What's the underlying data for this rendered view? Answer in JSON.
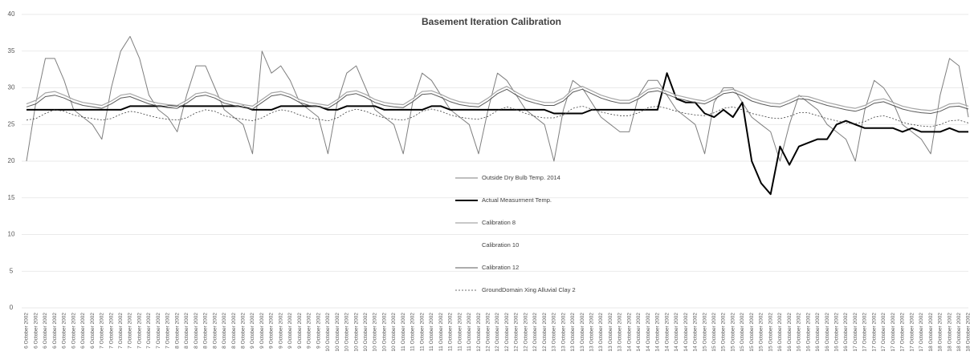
{
  "chart_data": {
    "type": "line",
    "title": "Basement Iteration Calibration",
    "categories": [
      "6 October 2002",
      "6 October 2002",
      "6 October 2002",
      "6 October 2002",
      "6 October 2002",
      "6 October 2002",
      "6 October 2002",
      "6 October 2002",
      "7 October 2002",
      "7 October 2002",
      "7 October 2002",
      "7 October 2002",
      "7 October 2002",
      "7 October 2002",
      "7 October 2002",
      "7 October 2002",
      "8 October 2002",
      "8 October 2002",
      "8 October 2002",
      "8 October 2002",
      "8 October 2002",
      "8 October 2002",
      "8 October 2002",
      "8 October 2002",
      "9 October 2002",
      "9 October 2002",
      "9 October 2002",
      "9 October 2002",
      "9 October 2002",
      "9 October 2002",
      "9 October 2002",
      "9 October 2002",
      "10 October 2002",
      "10 October 2002",
      "10 October 2002",
      "10 October 2002",
      "10 October 2002",
      "10 October 2002",
      "10 October 2002",
      "10 October 2002",
      "11 October 2002",
      "11 October 2002",
      "11 October 2002",
      "11 October 2002",
      "11 October 2002",
      "11 October 2002",
      "11 October 2002",
      "11 October 2002",
      "12 October 2002",
      "12 October 2002",
      "12 October 2002",
      "12 October 2002",
      "12 October 2002",
      "12 October 2002",
      "12 October 2002",
      "12 October 2002",
      "13 October 2002",
      "13 October 2002",
      "13 October 2002",
      "13 October 2002",
      "13 October 2002",
      "13 October 2002",
      "13 October 2002",
      "13 October 2002",
      "14 October 2002",
      "14 October 2002",
      "14 October 2002",
      "14 October 2002",
      "14 October 2002",
      "14 October 2002",
      "14 October 2002",
      "14 October 2002",
      "15 October 2002",
      "15 October 2002",
      "15 October 2002",
      "15 October 2002",
      "15 October 2002",
      "15 October 2002",
      "15 October 2002",
      "15 October 2002",
      "16 October 2002",
      "16 October 2002",
      "16 October 2002",
      "16 October 2002",
      "16 October 2002",
      "16 October 2002",
      "16 October 2002",
      "16 October 2002",
      "17 October 2002",
      "17 October 2002",
      "17 October 2002",
      "17 October 2002",
      "17 October 2002",
      "17 October 2002",
      "17 October 2002",
      "17 October 2002",
      "18 October 2002",
      "18 October 2002",
      "18 October 2002",
      "18 October 2002",
      "18 October 2002"
    ],
    "series": [
      {
        "name": "Outside Dry Bulb Temp. 2014",
        "color": "#7f7f7f",
        "width": 1,
        "values": [
          20,
          28,
          34,
          34,
          31,
          27,
          26,
          25,
          23,
          30,
          35,
          37,
          34,
          29,
          27,
          26,
          24,
          29,
          33,
          33,
          30,
          27,
          26,
          25,
          21,
          35,
          32,
          33,
          31,
          28,
          27,
          26,
          21,
          28,
          32,
          33,
          30,
          27,
          26,
          25,
          21,
          28,
          32,
          31,
          29,
          27,
          26,
          25,
          21,
          27,
          32,
          31,
          29,
          27,
          26,
          25,
          20,
          27,
          31,
          30,
          28,
          26,
          25,
          24,
          24,
          29,
          31,
          31,
          29,
          27,
          26,
          25,
          21,
          28,
          30,
          30,
          28,
          26,
          25,
          24,
          20,
          25,
          29,
          28,
          27,
          25,
          24,
          23,
          20,
          27,
          31,
          30,
          28,
          25,
          24,
          23,
          21,
          29,
          34,
          33,
          26
        ]
      },
      {
        "name": "Actual Measurment Temp.",
        "color": "#000000",
        "width": 2,
        "values": [
          27,
          27,
          27,
          27,
          27,
          27,
          27,
          27,
          27,
          27,
          27,
          27.5,
          27.5,
          27.5,
          27.5,
          27.5,
          27.5,
          27.5,
          27.5,
          27.5,
          27.5,
          27.5,
          27.5,
          27.5,
          27,
          27,
          27,
          27.5,
          27.5,
          27.5,
          27.5,
          27.5,
          27,
          27,
          27.5,
          27.5,
          27.5,
          27.5,
          27,
          27,
          27,
          27,
          27,
          27.5,
          27.5,
          27,
          27,
          27,
          27,
          27,
          27,
          27,
          27,
          27,
          27,
          27,
          26.5,
          26.5,
          26.5,
          26.5,
          27,
          27,
          27,
          27,
          27,
          27,
          27,
          27,
          32,
          28.5,
          28,
          28,
          26.5,
          26,
          27,
          26,
          28,
          20,
          17,
          15.5,
          22,
          19.5,
          22,
          22.5,
          23,
          23,
          25,
          25.5,
          25,
          24.5,
          24.5,
          24.5,
          24.5,
          24,
          24.5,
          24,
          24,
          24,
          24.5,
          24,
          24
        ]
      },
      {
        "name": "Calibration 8",
        "color": "#a6a6a6",
        "width": 1.2,
        "values": [
          27.8,
          28.3,
          29.3,
          29.5,
          29,
          28.4,
          28,
          27.8,
          27.6,
          28.2,
          29,
          29.2,
          28.7,
          28.2,
          27.9,
          27.7,
          27.6,
          28.3,
          29.2,
          29.4,
          29,
          28.3,
          28,
          27.7,
          27.5,
          28.4,
          29.3,
          29.5,
          29.1,
          28.4,
          28,
          27.8,
          27.6,
          28.4,
          29.4,
          29.6,
          29.1,
          28.4,
          28,
          27.8,
          27.7,
          28.5,
          29.5,
          29.6,
          29.1,
          28.5,
          28.1,
          27.9,
          27.8,
          28.6,
          29.6,
          30.2,
          29.4,
          28.7,
          28.3,
          28,
          28,
          28.6,
          29.8,
          30.2,
          29.6,
          29,
          28.6,
          28.3,
          28.3,
          28.9,
          29.8,
          30,
          29.5,
          29,
          28.7,
          28.4,
          28.2,
          28.8,
          29.6,
          29.8,
          29.3,
          28.6,
          28.2,
          27.9,
          27.8,
          28.3,
          28.9,
          28.8,
          28.4,
          28,
          27.7,
          27.4,
          27.2,
          27.6,
          28.3,
          28.5,
          28,
          27.5,
          27.2,
          27,
          26.9,
          27.2,
          27.8,
          27.9,
          27.5
        ]
      },
      {
        "name": "Calibration 10",
        "color": "#ffffff",
        "width": 1,
        "values": [
          27.6,
          28,
          29,
          29.2,
          28.8,
          28.2,
          27.8,
          27.6,
          27.4,
          28,
          28.8,
          29,
          28.5,
          28,
          27.7,
          27.5,
          27.4,
          28.1,
          29,
          29.2,
          28.8,
          28.1,
          27.8,
          27.5,
          27.3,
          28.2,
          29.1,
          29.3,
          28.9,
          28.2,
          27.8,
          27.6,
          27.4,
          28.2,
          29.2,
          29.4,
          28.9,
          28.2,
          27.8,
          27.6,
          27.5,
          28.3,
          29.3,
          29.4,
          28.9,
          28.3,
          27.9,
          27.7,
          27.6,
          28.4,
          29.4,
          30,
          29.2,
          28.5,
          28.1,
          27.8,
          27.8,
          28.4,
          29.6,
          30,
          29.4,
          28.8,
          28.4,
          28.1,
          28.1,
          28.7,
          29.6,
          29.8,
          29.3,
          28.8,
          28.5,
          28.2,
          28,
          28.6,
          29.4,
          29.6,
          29.1,
          28.4,
          28,
          27.7,
          27.6,
          28.1,
          28.7,
          28.6,
          28.2,
          27.8,
          27.5,
          27.2,
          27,
          27.4,
          28.1,
          28.3,
          27.8,
          27.3,
          27,
          26.8,
          26.7,
          27,
          27.6,
          27.7,
          27.3
        ]
      },
      {
        "name": "Calibration 12",
        "color": "#595959",
        "width": 1,
        "values": [
          27.4,
          27.8,
          28.8,
          29,
          28.6,
          28,
          27.6,
          27.4,
          27.2,
          27.8,
          28.6,
          28.8,
          28.3,
          27.8,
          27.5,
          27.3,
          27.2,
          27.9,
          28.8,
          29,
          28.6,
          27.9,
          27.6,
          27.3,
          27.1,
          28,
          28.9,
          29.1,
          28.7,
          28,
          27.6,
          27.4,
          27.2,
          28,
          29,
          29.2,
          28.7,
          28,
          27.6,
          27.4,
          27.3,
          28.1,
          29.1,
          29.2,
          28.7,
          28.1,
          27.7,
          27.5,
          27.4,
          28.2,
          29.2,
          29.8,
          29,
          28.3,
          27.9,
          27.6,
          27.6,
          28.2,
          29.4,
          29.8,
          29.2,
          28.6,
          28.2,
          27.9,
          27.9,
          28.5,
          29.4,
          29.6,
          29.1,
          28.6,
          28.3,
          28,
          27.8,
          28.4,
          29.2,
          29.4,
          28.9,
          28.2,
          27.8,
          27.5,
          27.4,
          27.9,
          28.5,
          28.4,
          28,
          27.6,
          27.3,
          27,
          26.8,
          27.2,
          27.9,
          28.1,
          27.6,
          27.1,
          26.8,
          26.6,
          26.5,
          26.8,
          27.4,
          27.5,
          27.1
        ]
      },
      {
        "name": "GroundDomain Xing Alluvial Clay 2",
        "color": "#404040",
        "width": 0.8,
        "dash": true,
        "values": [
          25.6,
          25.8,
          26.5,
          27,
          26.8,
          26.3,
          26,
          25.8,
          25.6,
          25.8,
          26.4,
          26.8,
          26.6,
          26.2,
          25.9,
          25.7,
          25.6,
          25.9,
          26.6,
          27,
          26.8,
          26.2,
          25.9,
          25.7,
          25.5,
          25.9,
          26.6,
          27,
          26.8,
          26.3,
          25.9,
          25.7,
          25.5,
          25.9,
          26.7,
          27.1,
          26.8,
          26.3,
          25.9,
          25.7,
          25.6,
          26,
          26.8,
          27.1,
          26.8,
          26.3,
          26,
          25.8,
          25.7,
          26.1,
          26.9,
          27.4,
          27,
          26.5,
          26.1,
          25.9,
          25.9,
          26.3,
          27.2,
          27.5,
          27.1,
          26.7,
          26.4,
          26.2,
          26.2,
          26.6,
          27.3,
          27.5,
          27.2,
          26.8,
          26.5,
          26.3,
          26.2,
          26.6,
          27.2,
          27.4,
          27,
          26.5,
          26.2,
          25.9,
          25.8,
          26.1,
          26.6,
          26.6,
          26.2,
          25.8,
          25.5,
          25.2,
          25.1,
          25.4,
          26,
          26.2,
          25.8,
          25.3,
          25,
          24.8,
          24.7,
          25,
          25.5,
          25.6,
          25.2
        ]
      }
    ],
    "ylim": [
      0,
      40
    ],
    "yticks": [
      0,
      5,
      10,
      15,
      20,
      25,
      30,
      35,
      40
    ],
    "grid": true
  }
}
